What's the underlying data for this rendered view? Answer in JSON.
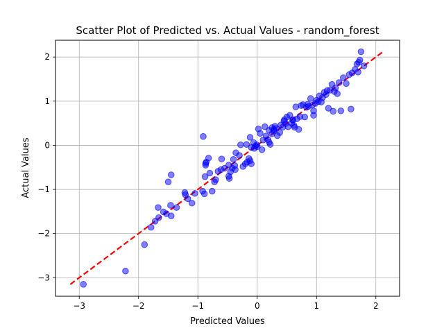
{
  "chart_data": {
    "type": "scatter",
    "title": "Scatter Plot of Predicted vs. Actual Values - random_forest",
    "xlabel": "Predicted Values",
    "ylabel": "Actual Values",
    "xlim": [
      -3.4,
      2.4
    ],
    "ylim": [
      -3.42,
      2.38
    ],
    "xticks": [
      -3,
      -2,
      -1,
      0,
      1,
      2
    ],
    "yticks": [
      -3,
      -2,
      -1,
      0,
      1,
      2
    ],
    "grid": true,
    "reference_line": {
      "from": [
        -3.15,
        -3.15
      ],
      "to": [
        2.12,
        2.12
      ],
      "color": "#ff0000",
      "style": "dashed"
    },
    "point_color": "#0000ff",
    "points": [
      [
        -2.93,
        -3.15
      ],
      [
        -2.22,
        -2.85
      ],
      [
        -1.9,
        -2.25
      ],
      [
        -1.79,
        -1.86
      ],
      [
        -1.72,
        -1.72
      ],
      [
        -1.66,
        -1.64
      ],
      [
        -1.67,
        -1.41
      ],
      [
        -1.58,
        -1.51
      ],
      [
        -1.53,
        -1.55
      ],
      [
        -1.5,
        -0.83
      ],
      [
        -1.45,
        -0.67
      ],
      [
        -1.46,
        -1.36
      ],
      [
        -1.45,
        -1.6
      ],
      [
        -1.36,
        -1.41
      ],
      [
        -1.22,
        -1.07
      ],
      [
        -1.21,
        -1.12
      ],
      [
        -1.17,
        -1.21
      ],
      [
        -1.1,
        -1.31
      ],
      [
        -1.05,
        -1.09
      ],
      [
        -0.92,
        -1.04
      ],
      [
        -0.91,
        0.2
      ],
      [
        -0.89,
        -1.1
      ],
      [
        -0.87,
        -0.41
      ],
      [
        -0.86,
        -0.38
      ],
      [
        -0.87,
        -0.45
      ],
      [
        -0.88,
        -0.71
      ],
      [
        -0.82,
        -0.29
      ],
      [
        -0.8,
        -0.63
      ],
      [
        -0.76,
        -1.04
      ],
      [
        -0.72,
        -0.83
      ],
      [
        -0.7,
        -0.78
      ],
      [
        -0.66,
        -0.59
      ],
      [
        -0.61,
        -0.55
      ],
      [
        -0.6,
        -0.31
      ],
      [
        -0.55,
        -0.52
      ],
      [
        -0.48,
        -0.45
      ],
      [
        -0.48,
        -0.7
      ],
      [
        -0.47,
        -0.75
      ],
      [
        -0.45,
        -0.6
      ],
      [
        -0.42,
        -0.52
      ],
      [
        -0.38,
        -0.46
      ],
      [
        -0.37,
        -0.55
      ],
      [
        -0.36,
        -0.17
      ],
      [
        -0.3,
        -0.23
      ],
      [
        -0.28,
        0.01
      ],
      [
        -0.24,
        -0.48
      ],
      [
        -0.2,
        -0.42
      ],
      [
        -0.18,
        0.02
      ],
      [
        -0.17,
        -0.38
      ],
      [
        -0.14,
        -0.3
      ],
      [
        -0.12,
        -0.35
      ],
      [
        -0.1,
        -0.05
      ],
      [
        -0.12,
        0.18
      ],
      [
        -0.1,
        -0.42
      ],
      [
        -0.05,
        -0.07
      ],
      [
        -0.03,
        -0.02
      ],
      [
        -0.01,
        0.01
      ],
      [
        0.0,
        -0.03
      ],
      [
        0.02,
        0.37
      ],
      [
        0.05,
        0.27
      ],
      [
        0.08,
        -0.1
      ],
      [
        0.1,
        0.12
      ],
      [
        0.13,
        0.42
      ],
      [
        0.15,
        0.21
      ],
      [
        0.18,
        0.13
      ],
      [
        0.2,
        0.07
      ],
      [
        0.22,
        0.02
      ],
      [
        0.25,
        0.4
      ],
      [
        0.25,
        0.26
      ],
      [
        0.28,
        0.32
      ],
      [
        0.3,
        0.43
      ],
      [
        0.32,
        0.38
      ],
      [
        0.34,
        0.22
      ],
      [
        0.38,
        0.29
      ],
      [
        0.4,
        0.46
      ],
      [
        0.43,
        0.41
      ],
      [
        0.46,
        0.58
      ],
      [
        0.48,
        0.49
      ],
      [
        0.5,
        0.64
      ],
      [
        0.52,
        0.42
      ],
      [
        0.55,
        0.68
      ],
      [
        0.58,
        0.5
      ],
      [
        0.6,
        0.57
      ],
      [
        0.62,
        0.45
      ],
      [
        0.63,
        0.41
      ],
      [
        0.65,
        0.87
      ],
      [
        0.67,
        0.6
      ],
      [
        0.7,
        0.36
      ],
      [
        0.72,
        0.65
      ],
      [
        0.74,
        0.9
      ],
      [
        0.77,
        0.92
      ],
      [
        0.8,
        0.64
      ],
      [
        0.83,
        0.86
      ],
      [
        0.86,
        0.88
      ],
      [
        0.9,
        1.06
      ],
      [
        0.93,
        0.91
      ],
      [
        0.95,
        0.68
      ],
      [
        0.95,
        0.78
      ],
      [
        0.98,
        0.95
      ],
      [
        1.0,
        1.02
      ],
      [
        1.03,
        0.99
      ],
      [
        1.05,
        1.12
      ],
      [
        1.08,
        0.98
      ],
      [
        1.1,
        1.08
      ],
      [
        1.13,
        1.2
      ],
      [
        1.16,
        1.15
      ],
      [
        1.2,
        0.84
      ],
      [
        1.23,
        1.25
      ],
      [
        1.26,
        1.38
      ],
      [
        1.28,
        0.77
      ],
      [
        1.3,
        1.22
      ],
      [
        1.32,
        1.3
      ],
      [
        1.35,
        1.17
      ],
      [
        1.38,
        1.42
      ],
      [
        1.41,
        0.78
      ],
      [
        1.45,
        1.53
      ],
      [
        1.5,
        1.4
      ],
      [
        1.55,
        1.6
      ],
      [
        1.58,
        0.82
      ],
      [
        1.6,
        1.64
      ],
      [
        1.65,
        1.72
      ],
      [
        1.68,
        1.84
      ],
      [
        1.7,
        1.66
      ],
      [
        1.73,
        1.93
      ],
      [
        1.75,
        2.12
      ],
      [
        1.8,
        1.8
      ],
      [
        1.71,
        1.88
      ],
      [
        0.2,
        0.34
      ],
      [
        -0.06,
        0.06
      ],
      [
        0.45,
        0.55
      ],
      [
        0.85,
        0.93
      ],
      [
        1.18,
        1.24
      ],
      [
        -0.4,
        -0.32
      ],
      [
        0.6,
        0.58
      ],
      [
        0.28,
        0.36
      ]
    ]
  }
}
